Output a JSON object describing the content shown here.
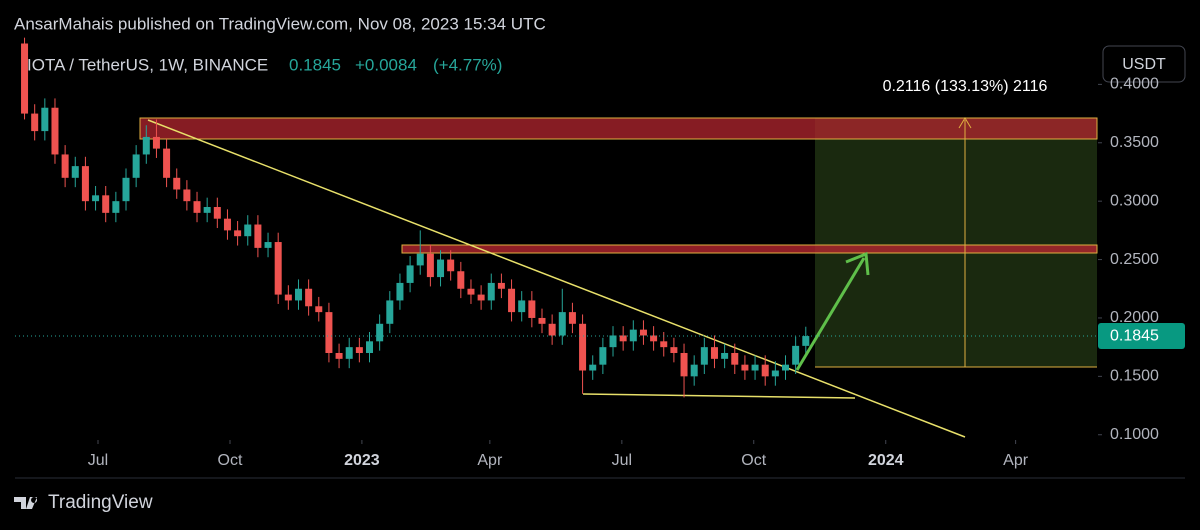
{
  "chart_data": {
    "type": "candlestick",
    "published": "AnsarMahais published on TradingView.com, Nov 08, 2023 15:34 UTC",
    "title": "IOTA / TetherUS, 1W, BINANCE",
    "last_price": 0.1845,
    "change": "+0.0084",
    "change_pct": "(+4.77%)",
    "currency": "USDT",
    "annotation": "0.2116 (133.13%) 2116",
    "brand": "TradingView",
    "up_color": "#26a69a",
    "down_color": "#ef5350",
    "categories": [
      null,
      null,
      null,
      null,
      null,
      null,
      null,
      null,
      null,
      null,
      null,
      null,
      null,
      null,
      null,
      null,
      null,
      null,
      null,
      null,
      null,
      null,
      null,
      null,
      null,
      null,
      null,
      null,
      null,
      null,
      null,
      null,
      null,
      null,
      null,
      null,
      null,
      null,
      null,
      null,
      null,
      null,
      null,
      null,
      null,
      null,
      null,
      null,
      null,
      null,
      null,
      null,
      null,
      null,
      null,
      null,
      null,
      null,
      null,
      null,
      null,
      null,
      null,
      null,
      null,
      null,
      null,
      null,
      null,
      null,
      null,
      null,
      null,
      null,
      null,
      null,
      null,
      null
    ],
    "open": [
      0.435,
      0.375,
      0.36,
      0.38,
      0.34,
      0.32,
      0.33,
      0.3,
      0.305,
      0.29,
      0.3,
      0.32,
      0.34,
      0.355,
      0.345,
      0.32,
      0.31,
      0.3,
      0.29,
      0.295,
      0.285,
      0.275,
      0.27,
      0.28,
      0.26,
      0.265,
      0.22,
      0.215,
      0.225,
      0.21,
      0.205,
      0.17,
      0.165,
      0.175,
      0.17,
      0.18,
      0.195,
      0.215,
      0.23,
      0.245,
      0.255,
      0.235,
      0.25,
      0.24,
      0.225,
      0.22,
      0.215,
      0.23,
      0.225,
      0.205,
      0.215,
      0.2,
      0.195,
      0.185,
      0.205,
      0.195,
      0.155,
      0.16,
      0.175,
      0.185,
      0.18,
      0.19,
      0.185,
      0.18,
      0.175,
      0.17,
      0.15,
      0.16,
      0.175,
      0.165,
      0.17,
      0.16,
      0.155,
      0.16,
      0.15,
      0.155,
      0.16,
      0.1761
    ],
    "high": [
      0.44,
      0.383,
      0.388,
      0.388,
      0.348,
      0.338,
      0.338,
      0.313,
      0.313,
      0.308,
      0.328,
      0.348,
      0.365,
      0.37,
      0.353,
      0.328,
      0.318,
      0.308,
      0.303,
      0.303,
      0.293,
      0.283,
      0.288,
      0.288,
      0.273,
      0.273,
      0.228,
      0.233,
      0.233,
      0.218,
      0.213,
      0.178,
      0.183,
      0.183,
      0.188,
      0.203,
      0.223,
      0.238,
      0.253,
      0.275,
      0.263,
      0.258,
      0.258,
      0.248,
      0.233,
      0.228,
      0.238,
      0.238,
      0.233,
      0.223,
      0.223,
      0.208,
      0.203,
      0.225,
      0.213,
      0.203,
      0.168,
      0.183,
      0.193,
      0.193,
      0.198,
      0.198,
      0.193,
      0.188,
      0.183,
      0.178,
      0.168,
      0.183,
      0.185,
      0.178,
      0.178,
      0.168,
      0.168,
      0.168,
      0.163,
      0.168,
      0.184,
      0.1925
    ],
    "low": [
      0.37,
      0.352,
      0.352,
      0.332,
      0.312,
      0.312,
      0.292,
      0.292,
      0.282,
      0.282,
      0.292,
      0.312,
      0.332,
      0.337,
      0.312,
      0.302,
      0.292,
      0.282,
      0.282,
      0.277,
      0.267,
      0.262,
      0.262,
      0.252,
      0.252,
      0.212,
      0.207,
      0.207,
      0.202,
      0.197,
      0.162,
      0.157,
      0.157,
      0.162,
      0.162,
      0.172,
      0.187,
      0.207,
      0.222,
      0.237,
      0.227,
      0.227,
      0.232,
      0.217,
      0.212,
      0.207,
      0.207,
      0.217,
      0.197,
      0.197,
      0.192,
      0.187,
      0.177,
      0.177,
      0.187,
      0.135,
      0.147,
      0.152,
      0.167,
      0.172,
      0.172,
      0.177,
      0.172,
      0.167,
      0.162,
      0.132,
      0.142,
      0.152,
      0.157,
      0.157,
      0.152,
      0.147,
      0.147,
      0.142,
      0.142,
      0.147,
      0.152,
      0.168
    ],
    "close": [
      0.375,
      0.36,
      0.38,
      0.34,
      0.32,
      0.33,
      0.3,
      0.305,
      0.29,
      0.3,
      0.32,
      0.34,
      0.355,
      0.345,
      0.32,
      0.31,
      0.3,
      0.29,
      0.295,
      0.285,
      0.275,
      0.27,
      0.28,
      0.26,
      0.265,
      0.22,
      0.215,
      0.225,
      0.21,
      0.205,
      0.17,
      0.165,
      0.175,
      0.17,
      0.18,
      0.195,
      0.215,
      0.23,
      0.245,
      0.255,
      0.235,
      0.25,
      0.24,
      0.225,
      0.22,
      0.215,
      0.23,
      0.225,
      0.205,
      0.215,
      0.2,
      0.195,
      0.185,
      0.205,
      0.195,
      0.155,
      0.16,
      0.175,
      0.185,
      0.18,
      0.19,
      0.185,
      0.18,
      0.175,
      0.17,
      0.15,
      0.16,
      0.175,
      0.165,
      0.17,
      0.16,
      0.155,
      0.16,
      0.15,
      0.155,
      0.16,
      0.1761,
      0.1845
    ],
    "xlim": [
      -0.94,
      105.8
    ],
    "xticks": [
      {
        "value": 7.24,
        "label": "Jul"
      },
      {
        "value": 20.25,
        "label": "Oct"
      },
      {
        "value": 33.25,
        "label": "2023"
      },
      {
        "value": 45.86,
        "label": "Apr"
      },
      {
        "value": 58.87,
        "label": "Jul"
      },
      {
        "value": 71.87,
        "label": "Oct"
      },
      {
        "value": 84.88,
        "label": "2024"
      },
      {
        "value": 97.68,
        "label": "Apr"
      }
    ],
    "ylim": [
      0.0955,
      0.438
    ],
    "yticks": [
      {
        "value": 0.1,
        "label": "0.1000"
      },
      {
        "value": 0.15,
        "label": "0.1500"
      },
      {
        "value": 0.2,
        "label": "0.2000"
      },
      {
        "value": 0.25,
        "label": "0.2500"
      },
      {
        "value": 0.3,
        "label": "0.3000"
      },
      {
        "value": 0.35,
        "label": "0.3500"
      },
      {
        "value": 0.4,
        "label": "0.4000"
      }
    ]
  }
}
